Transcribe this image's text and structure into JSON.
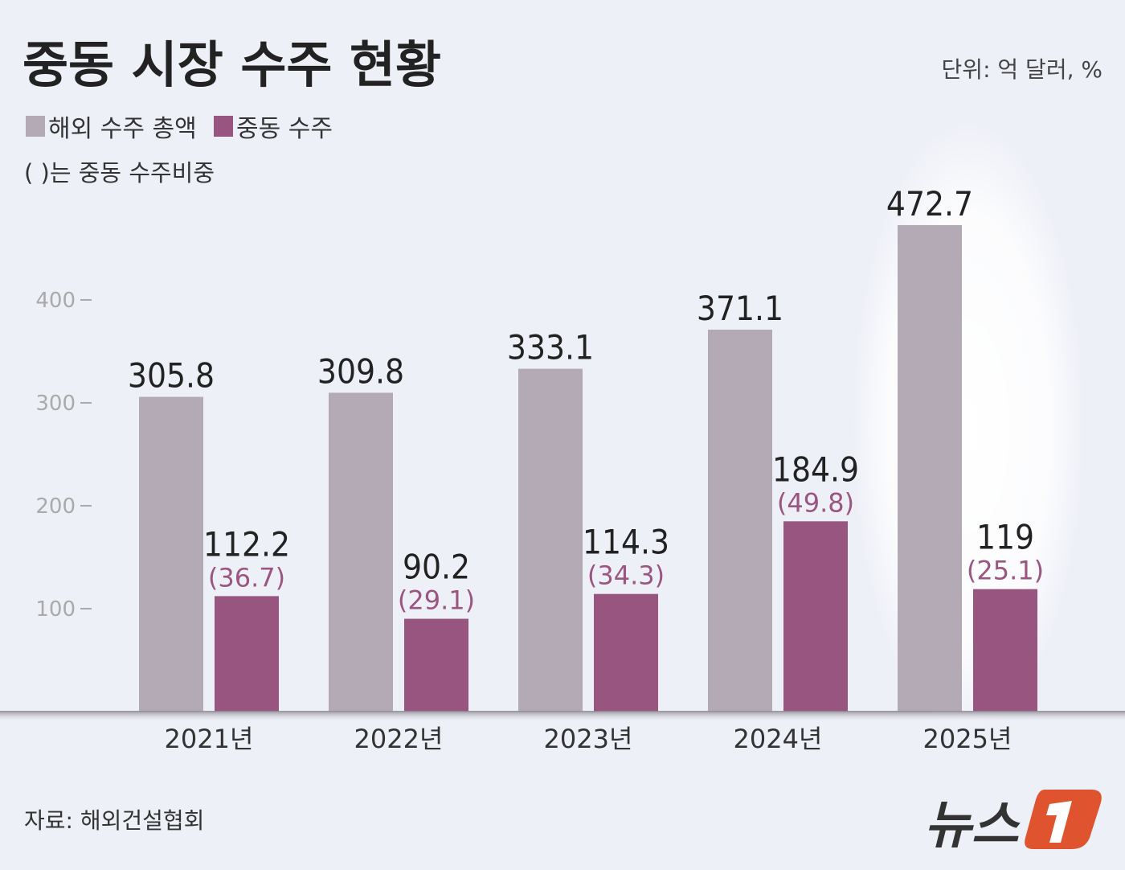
{
  "chart_data": {
    "type": "bar",
    "title": "중동 시장 수주 현황",
    "unit": "단위: 억 달러, %",
    "note": "( )는 중동 수주비중",
    "categories": [
      "2021년",
      "2022년",
      "2023년",
      "2024년",
      "2025년"
    ],
    "series": [
      {
        "name": "해외 수주 총액",
        "color": "#b3aab6",
        "values": [
          305.8,
          309.8,
          333.1,
          371.1,
          472.7
        ],
        "labels": [
          "305.8",
          "309.8",
          "333.1",
          "371.1",
          "472.7"
        ]
      },
      {
        "name": "중동 수주",
        "color": "#98557f",
        "values": [
          112.2,
          90.2,
          114.3,
          184.9,
          119
        ],
        "labels": [
          "112.2",
          "90.2",
          "114.3",
          "184.9",
          "119"
        ],
        "shares": [
          "(36.7)",
          "(29.1)",
          "(34.3)",
          "(49.8)",
          "(25.1)"
        ]
      }
    ],
    "yticks": [
      "100",
      "200",
      "300",
      "400"
    ],
    "ylim": [
      0,
      500
    ],
    "highlight": "2025년",
    "legend": "top-left",
    "grid": false
  },
  "source": "자료: 해외건설협회",
  "logo": {
    "text": "뉴스1",
    "color": "#e0532f"
  }
}
